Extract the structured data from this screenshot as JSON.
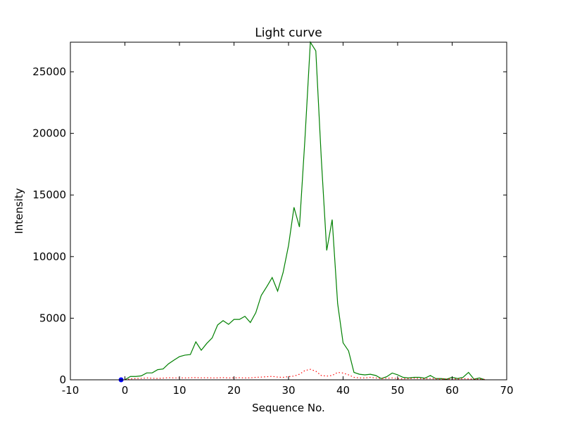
{
  "chart_data": {
    "type": "line",
    "title": "Light curve",
    "xlabel": "Sequence No.",
    "ylabel": "Intensity",
    "xlim": [
      -10,
      70
    ],
    "ylim": [
      0,
      27400
    ],
    "x_ticks": [
      -10,
      0,
      10,
      20,
      30,
      40,
      50,
      60,
      70
    ],
    "y_ticks": [
      0,
      5000,
      10000,
      15000,
      20000,
      25000
    ],
    "grid": false,
    "series": [
      {
        "color": "#008000",
        "style": "solid",
        "x": [
          0,
          1,
          2,
          3,
          4,
          5,
          6,
          7,
          8,
          9,
          10,
          11,
          12,
          13,
          14,
          15,
          16,
          17,
          18,
          19,
          20,
          21,
          22,
          23,
          24,
          25,
          26,
          27,
          28,
          29,
          30,
          31,
          32,
          33,
          34,
          35,
          36,
          37,
          38,
          39,
          40,
          41,
          42,
          43,
          44,
          45,
          46,
          47,
          48,
          49,
          50,
          51,
          52,
          53,
          54,
          55,
          56,
          57,
          58,
          59,
          60,
          61,
          62,
          63,
          64,
          65,
          66
        ],
        "y": [
          0,
          270,
          270,
          320,
          560,
          560,
          820,
          880,
          1300,
          1600,
          1880,
          2000,
          2050,
          3080,
          2400,
          2950,
          3400,
          4450,
          4800,
          4500,
          4900,
          4900,
          5150,
          4650,
          5450,
          6850,
          7550,
          8300,
          7200,
          8700,
          10900,
          14000,
          12400,
          19500,
          27400,
          26700,
          18000,
          10500,
          13000,
          6200,
          3000,
          2350,
          600,
          450,
          400,
          450,
          350,
          100,
          250,
          550,
          400,
          200,
          150,
          200,
          200,
          130,
          350,
          100,
          100,
          50,
          200,
          100,
          200,
          600,
          50,
          150,
          0
        ]
      },
      {
        "color": "#ff0000",
        "style": "dotted",
        "x": [
          0,
          1,
          2,
          3,
          4,
          5,
          6,
          7,
          8,
          9,
          10,
          11,
          12,
          13,
          14,
          15,
          16,
          17,
          18,
          19,
          20,
          21,
          22,
          23,
          24,
          25,
          26,
          27,
          28,
          29,
          30,
          31,
          32,
          33,
          34,
          35,
          36,
          37,
          38,
          39,
          40,
          41,
          42,
          43,
          44,
          45,
          46,
          47,
          48,
          49,
          50,
          51,
          52,
          53,
          54,
          55,
          56,
          57,
          58,
          59,
          60,
          61,
          62,
          63,
          64,
          65,
          66
        ],
        "y": [
          0,
          80,
          100,
          120,
          150,
          130,
          110,
          140,
          170,
          150,
          160,
          150,
          170,
          180,
          160,
          170,
          150,
          160,
          180,
          150,
          160,
          170,
          150,
          160,
          200,
          220,
          250,
          280,
          220,
          200,
          260,
          300,
          450,
          750,
          850,
          700,
          350,
          300,
          350,
          600,
          550,
          400,
          200,
          150,
          150,
          200,
          150,
          100,
          120,
          150,
          100,
          80,
          100,
          120,
          100,
          80,
          100,
          80,
          70,
          60,
          80,
          70,
          90,
          80,
          60,
          50,
          40
        ]
      },
      {
        "color": "#0000ff",
        "style": "marker",
        "x": [
          -0.7
        ],
        "y": [
          0
        ]
      }
    ]
  }
}
